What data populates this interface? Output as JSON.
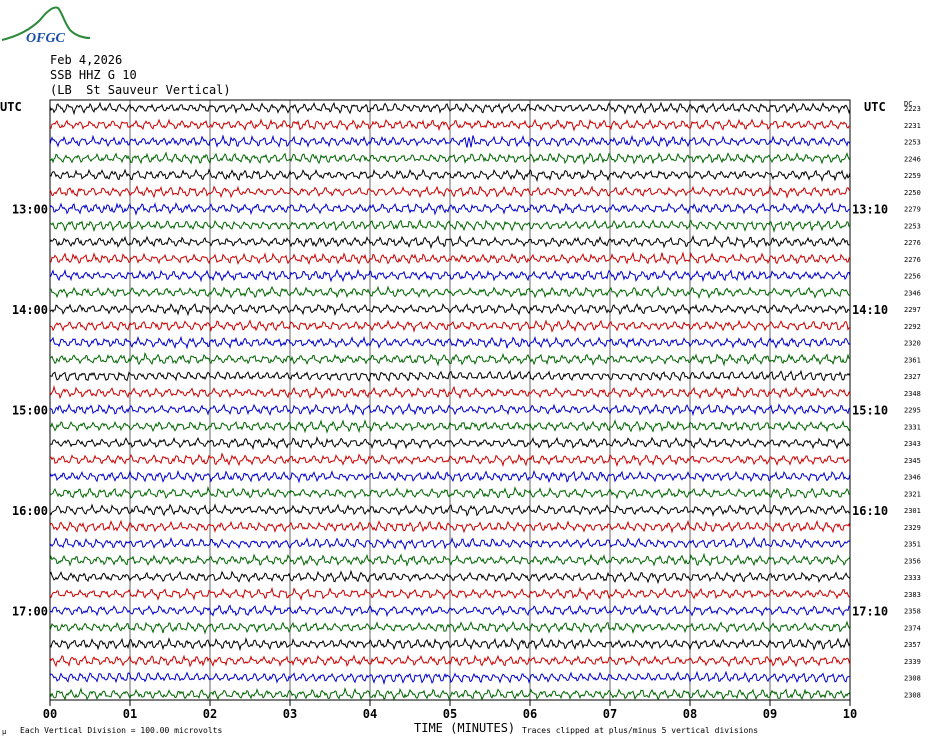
{
  "logo": {
    "text": "OFGC",
    "color": "#2c8a3a",
    "text_color": "#1a4fa8"
  },
  "header": {
    "date": "Feb 4,2026",
    "station": "SSB HHZ G 10",
    "description": "(LB  St Sauveur Vertical)"
  },
  "left_axis_label": "UTC",
  "right_axis_label": "UTC",
  "dc_label": "DC",
  "footer": {
    "left_mark": "µ",
    "scale": "Each Vertical Division =  100.00 microvolts",
    "clip": "Traces clipped at plus/minus 5 vertical divisions"
  },
  "chart_data": {
    "type": "line",
    "title": "",
    "xlabel": "TIME (MINUTES)",
    "ylabel": "",
    "xlim": [
      0,
      10
    ],
    "x_ticks": [
      "00",
      "01",
      "02",
      "03",
      "04",
      "05",
      "06",
      "07",
      "08",
      "09",
      "10"
    ],
    "trace_colors": [
      "#000000",
      "#cc0000",
      "#0000cc",
      "#006600"
    ],
    "left_hour_labels": [
      {
        "row": 6,
        "text": "13:00"
      },
      {
        "row": 12,
        "text": "14:00"
      },
      {
        "row": 18,
        "text": "15:00"
      },
      {
        "row": 24,
        "text": "16:00"
      },
      {
        "row": 30,
        "text": "17:00"
      }
    ],
    "right_hour_labels": [
      {
        "row": 6,
        "text": "13:10"
      },
      {
        "row": 12,
        "text": "14:10"
      },
      {
        "row": 18,
        "text": "15:10"
      },
      {
        "row": 24,
        "text": "16:10"
      },
      {
        "row": 30,
        "text": "17:10"
      }
    ],
    "dc_offsets": [
      2223,
      2231,
      2253,
      2246,
      2259,
      2250,
      2279,
      2253,
      2276,
      2276,
      2256,
      2346,
      2297,
      2292,
      2320,
      2361,
      2327,
      2348,
      2295,
      2331,
      2343,
      2345,
      2346,
      2321,
      2301,
      2329,
      2351,
      2356,
      2333,
      2383,
      2358,
      2374,
      2357,
      2339,
      2308,
      2308
    ],
    "events": [
      {
        "trace": 2,
        "minute": 5.25
      }
    ]
  }
}
